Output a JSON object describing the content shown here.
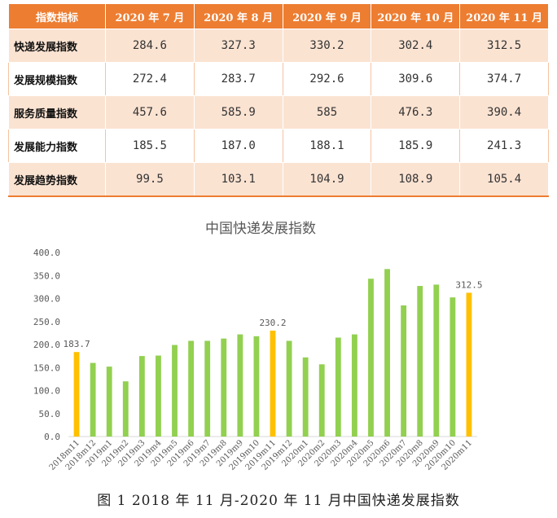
{
  "table": {
    "headers": [
      "指数指标",
      "2020 年 7 月",
      "2020 年 8 月",
      "2020 年 9 月",
      "2020 年 10 月",
      "2020 年 11 月"
    ],
    "rows": [
      {
        "name": "快递发展指数",
        "values": [
          "284.6",
          "327.3",
          "330.2",
          "302.4",
          "312.5"
        ]
      },
      {
        "name": "发展规模指数",
        "values": [
          "272.4",
          "283.7",
          "292.6",
          "309.6",
          "374.7"
        ]
      },
      {
        "name": "服务质量指数",
        "values": [
          "457.6",
          "585.9",
          "585",
          "476.3",
          "390.4"
        ]
      },
      {
        "name": "发展能力指数",
        "values": [
          "185.5",
          "187.0",
          "188.1",
          "185.9",
          "241.3"
        ]
      },
      {
        "name": "发展趋势指数",
        "values": [
          "99.5",
          "103.1",
          "104.9",
          "108.9",
          "105.4"
        ]
      }
    ]
  },
  "chart_data": {
    "type": "bar",
    "title": "中国快递发展指数",
    "categories": [
      "2018m11",
      "2018m12",
      "2019m1",
      "2019m2",
      "2019m3",
      "2019m4",
      "2019m5",
      "2019m6",
      "2019m7",
      "2019m8",
      "2019m9",
      "2019m10",
      "2019m11",
      "2019m12",
      "2020m1",
      "2020m2",
      "2020m3",
      "2020m4",
      "2020m5",
      "2020m6",
      "2020m7",
      "2020m8",
      "2020m9",
      "2020m10",
      "2020m11"
    ],
    "values": [
      183.7,
      160,
      152,
      120,
      175,
      176,
      199,
      208,
      208,
      213,
      222,
      218,
      230.2,
      208,
      172,
      157,
      215,
      222,
      343,
      364,
      285,
      327.3,
      330.2,
      302.4,
      312.5
    ],
    "highlight_indices": [
      0,
      12,
      24
    ],
    "data_labels": {
      "0": "183.7",
      "12": "230.2",
      "24": "312.5"
    },
    "yticks": [
      "0.0",
      "50.0",
      "100.0",
      "150.0",
      "200.0",
      "250.0",
      "300.0",
      "350.0",
      "400.0"
    ],
    "ylim": [
      0,
      400
    ],
    "colors": {
      "normal": "#92d050",
      "highlight": "#ffc000",
      "axis": "#d9d9d9",
      "text": "#595959"
    }
  },
  "caption": "图 1   2018 年 11 月-2020 年 11 月中国快递发展指数"
}
